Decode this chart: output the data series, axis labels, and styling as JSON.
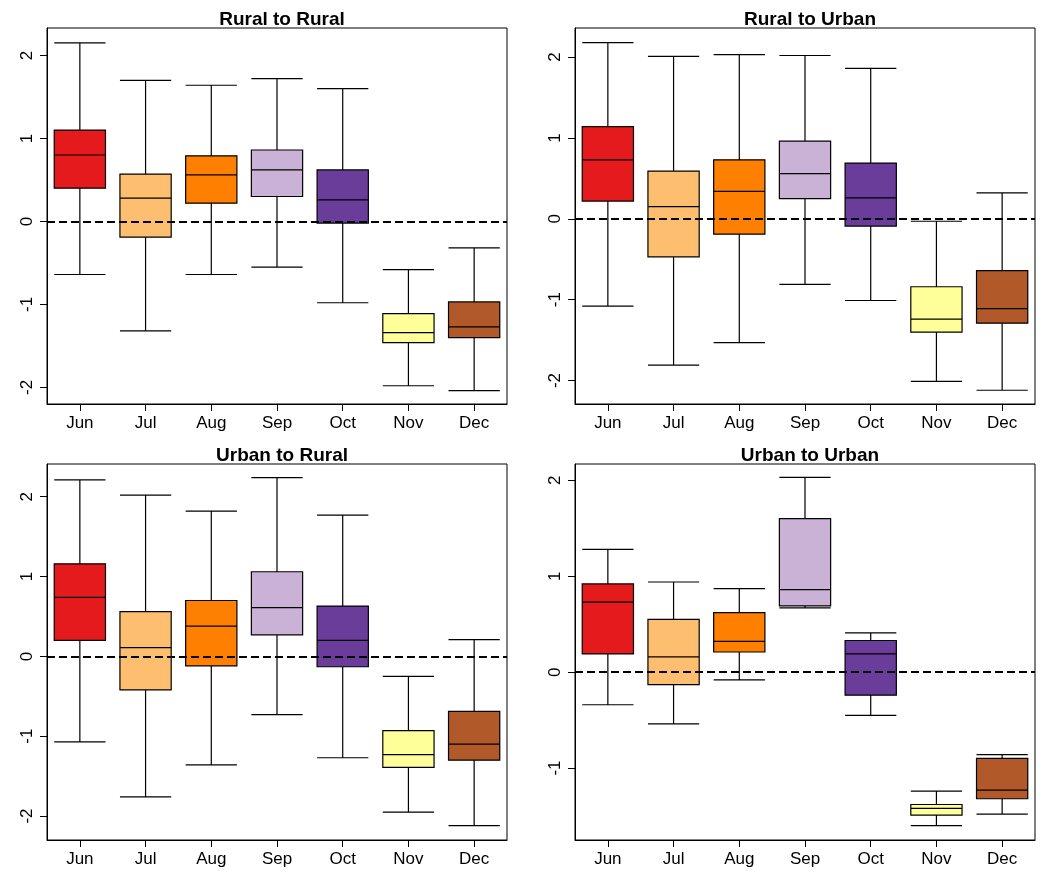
{
  "chart_data": [
    {
      "type": "box",
      "title": "Rural to Rural",
      "categories": [
        "Jun",
        "Jul",
        "Aug",
        "Sep",
        "Oct",
        "Nov",
        "Dec"
      ],
      "colors": [
        "#e41a1c",
        "#fdbf6f",
        "#ff7f00",
        "#cab2d6",
        "#6a3d9a",
        "#ffff99",
        "#b15928"
      ],
      "boxes": [
        {
          "low": -0.64,
          "q1": 0.4,
          "median": 0.8,
          "q3": 1.1,
          "high": 2.15
        },
        {
          "low": -1.32,
          "q1": -0.19,
          "median": 0.28,
          "q3": 0.57,
          "high": 1.7
        },
        {
          "low": -0.64,
          "q1": 0.22,
          "median": 0.56,
          "q3": 0.79,
          "high": 1.64
        },
        {
          "low": -0.55,
          "q1": 0.3,
          "median": 0.62,
          "q3": 0.86,
          "high": 1.72
        },
        {
          "low": -0.98,
          "q1": -0.02,
          "median": 0.26,
          "q3": 0.62,
          "high": 1.6
        },
        {
          "low": -1.98,
          "q1": -1.46,
          "median": -1.34,
          "q3": -1.11,
          "high": -0.58
        },
        {
          "low": -2.04,
          "q1": -1.4,
          "median": -1.27,
          "q3": -0.97,
          "high": -0.32
        }
      ],
      "ylim": [
        -2.2,
        2.33
      ],
      "yticks": [
        -2,
        -1,
        0,
        1,
        2
      ],
      "ref_lines": [
        {
          "axis": "y",
          "value": 0,
          "line_style": "dashed",
          "color": "#000000"
        }
      ]
    },
    {
      "type": "box",
      "title": "Rural to Urban",
      "categories": [
        "Jun",
        "Jul",
        "Aug",
        "Sep",
        "Oct",
        "Nov",
        "Dec"
      ],
      "colors": [
        "#e41a1c",
        "#fdbf6f",
        "#ff7f00",
        "#cab2d6",
        "#6a3d9a",
        "#ffff99",
        "#b15928"
      ],
      "boxes": [
        {
          "low": -1.08,
          "q1": 0.22,
          "median": 0.73,
          "q3": 1.14,
          "high": 2.18
        },
        {
          "low": -1.81,
          "q1": -0.47,
          "median": 0.15,
          "q3": 0.59,
          "high": 2.01
        },
        {
          "low": -1.53,
          "q1": -0.19,
          "median": 0.34,
          "q3": 0.73,
          "high": 2.03
        },
        {
          "low": -0.81,
          "q1": 0.25,
          "median": 0.56,
          "q3": 0.96,
          "high": 2.02
        },
        {
          "low": -1.01,
          "q1": -0.09,
          "median": 0.26,
          "q3": 0.69,
          "high": 1.86
        },
        {
          "low": -2.01,
          "q1": -1.4,
          "median": -1.24,
          "q3": -0.84,
          "high": -0.03
        },
        {
          "low": -2.12,
          "q1": -1.29,
          "median": -1.11,
          "q3": -0.64,
          "high": 0.32
        }
      ],
      "ylim": [
        -2.29,
        2.36
      ],
      "yticks": [
        -2,
        -1,
        0,
        1,
        2
      ],
      "ref_lines": [
        {
          "axis": "y",
          "value": 0,
          "line_style": "dashed",
          "color": "#000000"
        }
      ]
    },
    {
      "type": "box",
      "title": "Urban to Rural",
      "categories": [
        "Jun",
        "Jul",
        "Aug",
        "Sep",
        "Oct",
        "Nov",
        "Dec"
      ],
      "colors": [
        "#e41a1c",
        "#fdbf6f",
        "#ff7f00",
        "#cab2d6",
        "#6a3d9a",
        "#ffff99",
        "#b15928"
      ],
      "boxes": [
        {
          "low": -1.07,
          "q1": 0.2,
          "median": 0.74,
          "q3": 1.16,
          "high": 2.21
        },
        {
          "low": -1.76,
          "q1": -0.42,
          "median": 0.11,
          "q3": 0.56,
          "high": 2.02
        },
        {
          "low": -1.36,
          "q1": -0.12,
          "median": 0.38,
          "q3": 0.7,
          "high": 1.82
        },
        {
          "low": -0.73,
          "q1": 0.27,
          "median": 0.61,
          "q3": 1.06,
          "high": 2.24
        },
        {
          "low": -1.27,
          "q1": -0.13,
          "median": 0.2,
          "q3": 0.63,
          "high": 1.77
        },
        {
          "low": -1.95,
          "q1": -1.39,
          "median": -1.23,
          "q3": -0.93,
          "high": -0.25
        },
        {
          "low": -2.12,
          "q1": -1.3,
          "median": -1.1,
          "q3": -0.69,
          "high": 0.21
        }
      ],
      "ylim": [
        -2.3,
        2.41
      ],
      "yticks": [
        -2,
        -1,
        0,
        1,
        2
      ],
      "ref_lines": [
        {
          "axis": "y",
          "value": 0,
          "line_style": "dashed",
          "color": "#000000"
        }
      ]
    },
    {
      "type": "box",
      "title": "Urban to Urban",
      "categories": [
        "Jun",
        "Jul",
        "Aug",
        "Sep",
        "Oct",
        "Nov",
        "Dec"
      ],
      "colors": [
        "#e41a1c",
        "#fdbf6f",
        "#ff7f00",
        "#cab2d6",
        "#6a3d9a",
        "#ffff99",
        "#b15928"
      ],
      "boxes": [
        {
          "low": -0.34,
          "q1": 0.19,
          "median": 0.73,
          "q3": 0.92,
          "high": 1.28
        },
        {
          "low": -0.54,
          "q1": -0.13,
          "median": 0.16,
          "q3": 0.55,
          "high": 0.94
        },
        {
          "low": -0.08,
          "q1": 0.21,
          "median": 0.32,
          "q3": 0.62,
          "high": 0.87
        },
        {
          "low": 0.67,
          "q1": 0.69,
          "median": 0.86,
          "q3": 1.6,
          "high": 2.03
        },
        {
          "low": -0.45,
          "q1": -0.24,
          "median": 0.19,
          "q3": 0.33,
          "high": 0.41
        },
        {
          "low": -1.6,
          "q1": -1.49,
          "median": -1.42,
          "q3": -1.38,
          "high": -1.24
        },
        {
          "low": -1.48,
          "q1": -1.32,
          "median": -1.23,
          "q3": -0.9,
          "high": -0.86
        }
      ],
      "ylim": [
        -1.75,
        2.17
      ],
      "yticks": [
        -1,
        0,
        1,
        2
      ],
      "ref_lines": [
        {
          "axis": "y",
          "value": 0,
          "line_style": "dashed",
          "color": "#000000"
        }
      ]
    }
  ]
}
